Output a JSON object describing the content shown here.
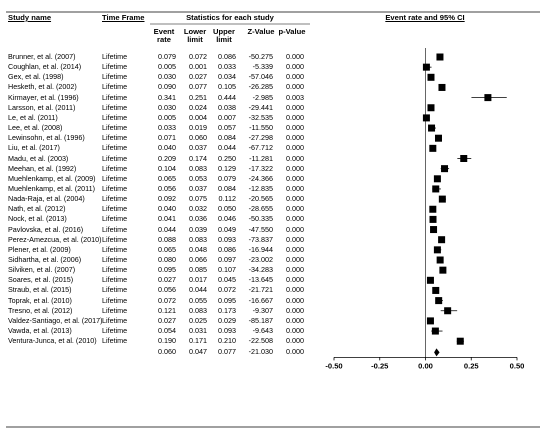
{
  "chart_data": {
    "type": "forest",
    "headers": {
      "study": "Study name",
      "time_frame": "Time Frame",
      "stats": "Statistics for each study",
      "plot": "Event rate and 95% CI"
    },
    "studies": [
      "Brunner, et al. (2007)",
      "Coughlan, et al. (2014)",
      "Gex, et al. (1998)",
      "Hesketh, et al. (2002)",
      "Kirmayer, et al. (1996)",
      "Larsson, et al. (2011)",
      "Le, et al. (2011)",
      "Lee, et al. (2008)",
      "Lewinsohn, et al. (1996)",
      "Liu, et al. (2017)",
      "Madu, et al. (2003)",
      "Meehan, et al. (1992)",
      "Muehlenkamp, et al. (2009)",
      "Muehlenkamp, et al. (2011)",
      "Nada-Raja, et al. (2004)",
      "Nath, et al. (2012)",
      "Nock, et al. (2013)",
      "Pavlovska, et al. (2016)",
      "Perez-Amezcua, et al. (2010)",
      "Plener, et al. (2009)",
      "Sidhartha, et al. (2006)",
      "Silviken, et al. (2007)",
      "Soares, et al. (2015)",
      "Straub, et al. (2015)",
      "Toprak, et al. (2010)",
      "Tresno, et al. (2012)",
      "Valdez-Santiago, et al. (2017)",
      "Vawda, et al. (2013)",
      "Ventura-Junca, et al. (2010)"
    ],
    "time_frames": [
      "Lifetime",
      "Lifetime",
      "Lifetime",
      "Lifetime",
      "Lifetime",
      "Lifetime",
      "Lifetime",
      "Lifetime",
      "Lifetime",
      "Lifetime",
      "Lifetime",
      "Lifetime",
      "Lifetime",
      "Lifetime",
      "Lifetime",
      "Lifetime",
      "Lifetime",
      "Lifetime",
      "Lifetime",
      "Lifetime",
      "Lifetime",
      "Lifetime",
      "Lifetime",
      "Lifetime",
      "Lifetime",
      "Lifetime",
      "Lifetime",
      "Lifetime",
      "Lifetime"
    ],
    "series": [
      {
        "name": "Event rate",
        "values": [
          0.079,
          0.005,
          0.03,
          0.09,
          0.341,
          0.03,
          0.005,
          0.033,
          0.071,
          0.04,
          0.209,
          0.104,
          0.065,
          0.056,
          0.092,
          0.04,
          0.041,
          0.044,
          0.088,
          0.065,
          0.08,
          0.095,
          0.027,
          0.056,
          0.072,
          0.121,
          0.027,
          0.054,
          0.19
        ],
        "value_labels": [
          "0.079",
          "0.005",
          "0.030",
          "0.090",
          "0.341",
          "0.030",
          "0.005",
          "0.033",
          "0.071",
          "0.040",
          "0.209",
          "0.104",
          "0.065",
          "0.056",
          "0.092",
          "0.040",
          "0.041",
          "0.044",
          "0.088",
          "0.065",
          "0.080",
          "0.095",
          "0.027",
          "0.056",
          "0.072",
          "0.121",
          "0.027",
          "0.054",
          "0.190"
        ]
      },
      {
        "name": "Lower limit",
        "values": [
          0.072,
          0.001,
          0.027,
          0.077,
          0.251,
          0.024,
          0.004,
          0.019,
          0.06,
          0.037,
          0.174,
          0.083,
          0.053,
          0.037,
          0.075,
          0.032,
          0.036,
          0.039,
          0.083,
          0.048,
          0.066,
          0.085,
          0.017,
          0.044,
          0.055,
          0.083,
          0.025,
          0.031,
          0.171
        ],
        "value_labels": [
          "0.072",
          "0.001",
          "0.027",
          "0.077",
          "0.251",
          "0.024",
          "0.004",
          "0.019",
          "0.060",
          "0.037",
          "0.174",
          "0.083",
          "0.053",
          "0.037",
          "0.075",
          "0.032",
          "0.036",
          "0.039",
          "0.083",
          "0.048",
          "0.066",
          "0.085",
          "0.017",
          "0.044",
          "0.055",
          "0.083",
          "0.025",
          "0.031",
          "0.171"
        ]
      },
      {
        "name": "Upper limit",
        "values": [
          0.086,
          0.033,
          0.034,
          0.105,
          0.444,
          0.038,
          0.007,
          0.057,
          0.084,
          0.044,
          0.25,
          0.129,
          0.079,
          0.084,
          0.112,
          0.05,
          0.046,
          0.049,
          0.093,
          0.086,
          0.097,
          0.107,
          0.045,
          0.072,
          0.095,
          0.173,
          0.029,
          0.093,
          0.21
        ],
        "value_labels": [
          "0.086",
          "0.033",
          "0.034",
          "0.105",
          "0.444",
          "0.038",
          "0.007",
          "0.057",
          "0.084",
          "0.044",
          "0.250",
          "0.129",
          "0.079",
          "0.084",
          "0.112",
          "0.050",
          "0.046",
          "0.049",
          "0.093",
          "0.086",
          "0.097",
          "0.107",
          "0.045",
          "0.072",
          "0.095",
          "0.173",
          "0.029",
          "0.093",
          "0.210"
        ]
      },
      {
        "name": "Z-Value",
        "values": [
          -50.275,
          -5.339,
          -57.046,
          -26.285,
          -2.985,
          -29.441,
          -32.535,
          -11.55,
          -27.298,
          -67.712,
          -11.281,
          -17.322,
          -24.366,
          -12.835,
          -20.565,
          -28.655,
          -50.335,
          -47.55,
          -73.837,
          -16.944,
          -23.002,
          -34.283,
          -13.645,
          -21.721,
          -16.667,
          -9.307,
          -85.187,
          -9.643,
          -22.508
        ],
        "value_labels": [
          "-50.275",
          "-5.339",
          "-57.046",
          "-26.285",
          "-2.985",
          "-29.441",
          "-32.535",
          "-11.550",
          "-27.298",
          "-67.712",
          "-11.281",
          "-17.322",
          "-24.366",
          "-12.835",
          "-20.565",
          "-28.655",
          "-50.335",
          "-47.550",
          "-73.837",
          "-16.944",
          "-23.002",
          "-34.283",
          "-13.645",
          "-21.721",
          "-16.667",
          "-9.307",
          "-85.187",
          "-9.643",
          "-22.508"
        ]
      },
      {
        "name": "p-Value",
        "values": [
          0,
          0,
          0,
          0,
          0.003,
          0,
          0,
          0,
          0,
          0,
          0,
          0,
          0,
          0,
          0,
          0,
          0,
          0,
          0,
          0,
          0,
          0,
          0,
          0,
          0,
          0,
          0,
          0,
          0
        ],
        "value_labels": [
          "0.000",
          "0.000",
          "0.000",
          "0.000",
          "0.003",
          "0.000",
          "0.000",
          "0.000",
          "0.000",
          "0.000",
          "0.000",
          "0.000",
          "0.000",
          "0.000",
          "0.000",
          "0.000",
          "0.000",
          "0.000",
          "0.000",
          "0.000",
          "0.000",
          "0.000",
          "0.000",
          "0.000",
          "0.000",
          "0.000",
          "0.000",
          "0.000",
          "0.000"
        ]
      }
    ],
    "summary": {
      "values": [
        0.06,
        0.047,
        0.077,
        -21.03,
        0
      ],
      "value_labels": [
        "0.060",
        "0.047",
        "0.077",
        "-21.030",
        "0.000"
      ]
    },
    "xlim": [
      -0.5,
      0.5
    ],
    "xticks": [
      {
        "value": -0.5,
        "label": "-0.50"
      },
      {
        "value": -0.25,
        "label": "-0.25"
      },
      {
        "value": 0,
        "label": "0.00"
      },
      {
        "value": 0.25,
        "label": "0.25"
      },
      {
        "value": 0.5,
        "label": "0.50"
      }
    ],
    "color": "#000000"
  }
}
